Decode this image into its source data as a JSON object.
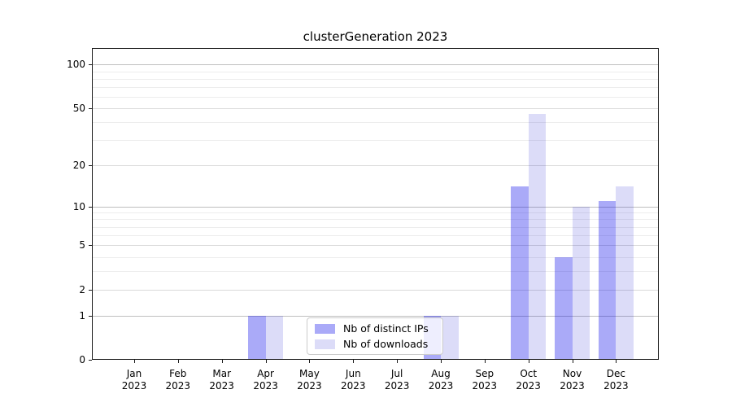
{
  "title": "clusterGeneration 2023",
  "chart_data": {
    "type": "bar",
    "title": "clusterGeneration 2023",
    "x_months": [
      "Jan",
      "Feb",
      "Mar",
      "Apr",
      "May",
      "Jun",
      "Jul",
      "Aug",
      "Sep",
      "Oct",
      "Nov",
      "Dec"
    ],
    "x_year": "2023",
    "series": [
      {
        "name": "Nb of distinct IPs",
        "color": "#aaaaf8",
        "fill": "rgba(12,12,235,0.35)",
        "values": [
          0,
          0,
          0,
          1,
          0,
          0,
          0,
          1,
          0,
          14,
          4,
          11
        ]
      },
      {
        "name": "Nb of downloads",
        "color": "#dcdcf8",
        "fill": "rgba(22,22,208,0.15)",
        "values": [
          0,
          0,
          0,
          1,
          0,
          0,
          0,
          1,
          0,
          46,
          10,
          14
        ]
      }
    ],
    "y_ticks": [
      0,
      1,
      2,
      5,
      10,
      20,
      50,
      100
    ],
    "y_major_lines": [
      1,
      10,
      100
    ],
    "y_medium_lines": [
      2,
      5,
      20,
      50
    ],
    "y_minor_lines": [
      3,
      4,
      6,
      7,
      8,
      9,
      30,
      40,
      60,
      70,
      80,
      90
    ],
    "y_scale": "log10(1+x)",
    "ylim": [
      0,
      130
    ],
    "grid": "both",
    "legend_position": "lower center"
  }
}
